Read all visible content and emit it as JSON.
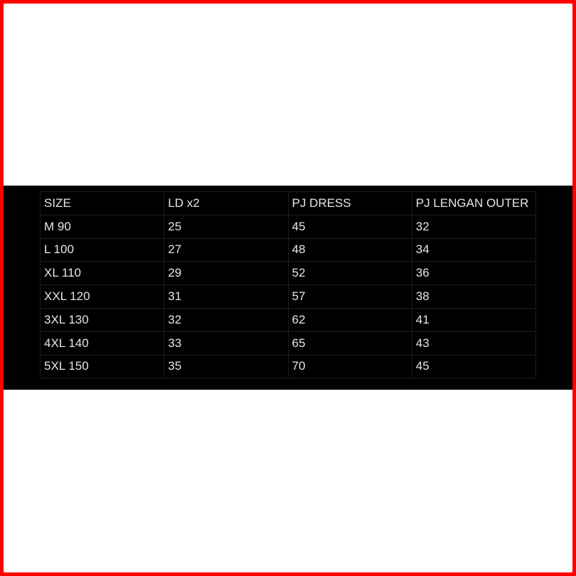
{
  "colors": {
    "border": "#ff0000",
    "band": "#000000",
    "text": "#e6e6e6"
  },
  "table": {
    "headers": [
      "SIZE",
      "LD x2",
      "PJ DRESS",
      "PJ LENGAN OUTER"
    ],
    "rows": [
      [
        "M 90",
        "25",
        "45",
        "32"
      ],
      [
        "L 100",
        "27",
        "48",
        "34"
      ],
      [
        "XL 110",
        "29",
        "52",
        "36"
      ],
      [
        "XXL 120",
        "31",
        "57",
        "38"
      ],
      [
        "3XL 130",
        "32",
        "62",
        "41"
      ],
      [
        "4XL 140",
        "33",
        "65",
        "43"
      ],
      [
        "5XL 150",
        "35",
        "70",
        "45"
      ]
    ]
  }
}
